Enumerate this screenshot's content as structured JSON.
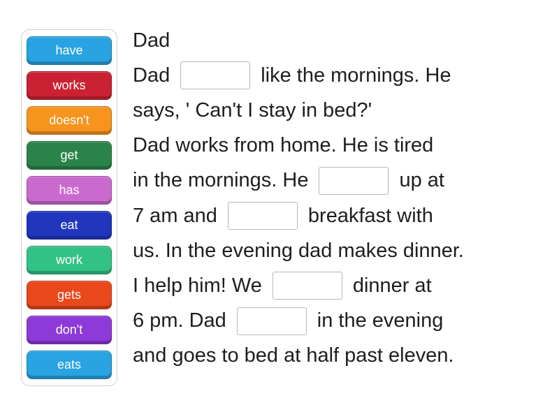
{
  "colors": {
    "background": "#ffffff",
    "text": "#1e1e1e",
    "panel_border": "#cfcfcf",
    "blank_border": "#b8b8b8"
  },
  "word_bank": {
    "tiles": [
      {
        "label": "have",
        "color": "#29a3e1"
      },
      {
        "label": "works",
        "color": "#cb2233"
      },
      {
        "label": "doesn't",
        "color": "#f6941e"
      },
      {
        "label": "get",
        "color": "#2a8449"
      },
      {
        "label": "has",
        "color": "#cb6ace"
      },
      {
        "label": "eat",
        "color": "#2136bd"
      },
      {
        "label": "work",
        "color": "#33c285"
      },
      {
        "label": "gets",
        "color": "#e8481c"
      },
      {
        "label": "don't",
        "color": "#8d3ad8"
      },
      {
        "label": "eats",
        "color": "#29a3e1"
      }
    ]
  },
  "passage": {
    "lines": [
      {
        "segments": [
          {
            "type": "text",
            "text": "Dad"
          }
        ]
      },
      {
        "segments": [
          {
            "type": "text",
            "text": "Dad"
          },
          {
            "type": "blank"
          },
          {
            "type": "text",
            "text": "like the mornings. He"
          }
        ]
      },
      {
        "segments": [
          {
            "type": "text",
            "text": "says, ' Can't I stay in bed?'"
          }
        ]
      },
      {
        "segments": [
          {
            "type": "text",
            "text": "Dad works from home. He is tired"
          }
        ]
      },
      {
        "segments": [
          {
            "type": "text",
            "text": "in the mornings. He"
          },
          {
            "type": "blank"
          },
          {
            "type": "text",
            "text": "up at"
          }
        ]
      },
      {
        "segments": [
          {
            "type": "text",
            "text": "7 am and"
          },
          {
            "type": "blank"
          },
          {
            "type": "text",
            "text": "breakfast with"
          }
        ]
      },
      {
        "segments": [
          {
            "type": "text",
            "text": "us. In the evening dad makes dinner."
          }
        ]
      },
      {
        "segments": [
          {
            "type": "text",
            "text": "I help him! We"
          },
          {
            "type": "blank"
          },
          {
            "type": "text",
            "text": "dinner at"
          }
        ]
      },
      {
        "segments": [
          {
            "type": "text",
            "text": "6 pm. Dad"
          },
          {
            "type": "blank"
          },
          {
            "type": "text",
            "text": "in the evening"
          }
        ]
      },
      {
        "segments": [
          {
            "type": "text",
            "text": "and goes to bed at half past eleven."
          }
        ]
      }
    ]
  }
}
